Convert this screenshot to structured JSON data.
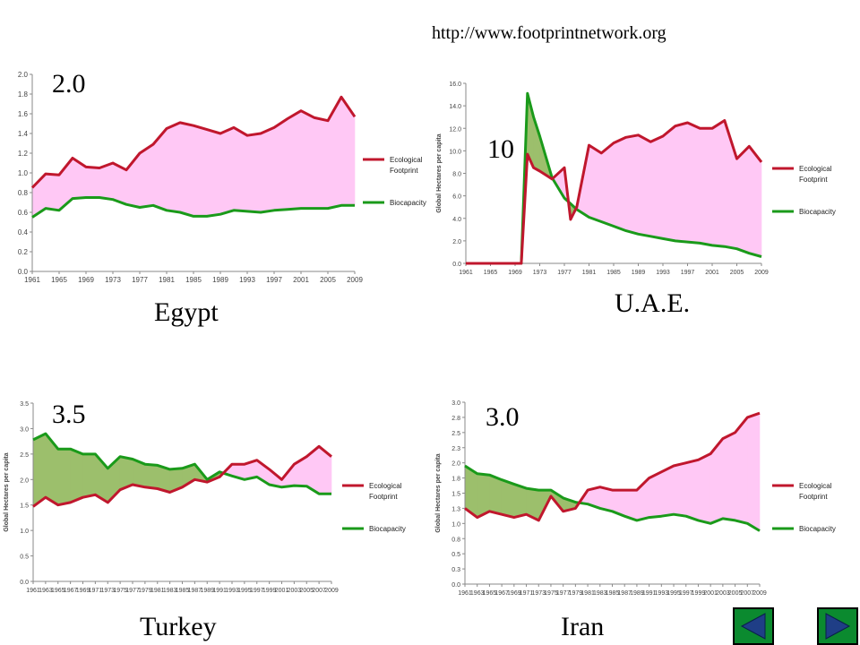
{
  "source_url": "http://www.footprintnetwork.org",
  "legend_labels": {
    "ef_line1": "Ecological",
    "ef_line2": "Footprint",
    "bio": "Biocapacity"
  },
  "colors": {
    "ef": "#c0172d",
    "bio": "#1a9a1a",
    "deficit_fill": "#ffc8f5",
    "reserve_fill": "#9cbf6c",
    "nav_button": "#0b8a2f",
    "nav_arrow": "#1f3e86"
  },
  "charts": {
    "egypt": {
      "country_label": "Egypt",
      "value_label": "2.0"
    },
    "uae": {
      "country_label": "U.A.E.",
      "value_label": "10"
    },
    "turkey": {
      "country_label": "Turkey",
      "value_label": "3.5"
    },
    "iran": {
      "country_label": "Iran",
      "value_label": "3.0"
    }
  },
  "nav": {
    "prev_icon": "left-arrow-icon",
    "next_icon": "right-arrow-icon"
  },
  "chart_data": [
    {
      "type": "area",
      "title": "",
      "xlabel": "",
      "ylabel": "",
      "x": [
        1961,
        1963,
        1965,
        1967,
        1969,
        1971,
        1973,
        1975,
        1977,
        1979,
        1981,
        1983,
        1985,
        1987,
        1989,
        1991,
        1993,
        1995,
        1997,
        1999,
        2001,
        2003,
        2005,
        2007,
        2009
      ],
      "xticks": [
        "1961",
        "1965",
        "1969",
        "1973",
        "1977",
        "1981",
        "1985",
        "1989",
        "1993",
        "1997",
        "2001",
        "2005",
        "2009"
      ],
      "yticks": [
        "0.0",
        "0.2",
        "0.4",
        "0.6",
        "0.8",
        "1.0",
        "1.2",
        "1.4",
        "1.6",
        "1.8",
        "2.0"
      ],
      "ylim": [
        0,
        2.0
      ],
      "series": [
        {
          "name": "Ecological Footprint",
          "values": [
            0.85,
            0.99,
            0.98,
            1.15,
            1.06,
            1.05,
            1.1,
            1.03,
            1.2,
            1.29,
            1.45,
            1.51,
            1.48,
            1.44,
            1.4,
            1.46,
            1.38,
            1.4,
            1.46,
            1.55,
            1.63,
            1.56,
            1.53,
            1.77,
            1.57
          ]
        },
        {
          "name": "Biocapacity",
          "values": [
            0.55,
            0.64,
            0.62,
            0.74,
            0.75,
            0.75,
            0.73,
            0.68,
            0.65,
            0.67,
            0.62,
            0.6,
            0.56,
            0.56,
            0.58,
            0.62,
            0.61,
            0.6,
            0.62,
            0.63,
            0.64,
            0.64,
            0.64,
            0.67,
            0.67
          ]
        }
      ]
    },
    {
      "type": "area",
      "title": "",
      "xlabel": "",
      "ylabel": "Global Hectares per capita",
      "x": [
        1961,
        1963,
        1965,
        1967,
        1969,
        1970,
        1971,
        1972,
        1973,
        1975,
        1977,
        1978,
        1979,
        1981,
        1983,
        1985,
        1987,
        1989,
        1991,
        1993,
        1995,
        1997,
        1999,
        2001,
        2003,
        2005,
        2007,
        2009
      ],
      "xticks": [
        "1961",
        "1965",
        "1969",
        "1973",
        "1977",
        "1981",
        "1985",
        "1989",
        "1993",
        "1997",
        "2001",
        "2005",
        "2009"
      ],
      "yticks": [
        "0.0",
        "2.0",
        "4.0",
        "6.0",
        "8.0",
        "10.0",
        "12.0",
        "14.0",
        "16.0"
      ],
      "ylim": [
        0,
        16
      ],
      "series": [
        {
          "name": "Ecological Footprint",
          "values": [
            0,
            0,
            0,
            0,
            0,
            0,
            9.7,
            8.5,
            8.2,
            7.5,
            8.5,
            3.9,
            5.0,
            10.5,
            9.8,
            10.7,
            11.2,
            11.4,
            10.8,
            11.3,
            12.2,
            12.5,
            12.0,
            12.0,
            12.7,
            9.3,
            10.4,
            9.0
          ]
        },
        {
          "name": "Biocapacity",
          "values": [
            0,
            0,
            0,
            0,
            0,
            0,
            15.1,
            13.0,
            11.3,
            7.6,
            5.8,
            5.3,
            4.8,
            4.1,
            3.7,
            3.3,
            2.9,
            2.6,
            2.4,
            2.2,
            2.0,
            1.9,
            1.8,
            1.6,
            1.5,
            1.3,
            0.9,
            0.6
          ]
        }
      ]
    },
    {
      "type": "area",
      "title": "",
      "xlabel": "",
      "ylabel": "Global Hectares per capita",
      "x": [
        1961,
        1963,
        1965,
        1967,
        1969,
        1971,
        1973,
        1975,
        1977,
        1979,
        1981,
        1983,
        1985,
        1987,
        1989,
        1991,
        1993,
        1995,
        1997,
        1999,
        2001,
        2003,
        2005,
        2007,
        2009
      ],
      "xticks": [
        "1961",
        "1963",
        "1965",
        "1967",
        "1969",
        "1971",
        "1973",
        "1975",
        "1977",
        "1979",
        "1981",
        "1983",
        "1985",
        "1987",
        "1989",
        "1991",
        "1993",
        "1995",
        "1997",
        "1999",
        "2001",
        "2003",
        "2005",
        "2007",
        "2009"
      ],
      "yticks": [
        "0.0",
        "0.5",
        "1.0",
        "1.5",
        "2.0",
        "2.5",
        "3.0",
        "3.5"
      ],
      "ylim": [
        0,
        3.5
      ],
      "series": [
        {
          "name": "Ecological Footprint",
          "values": [
            1.47,
            1.65,
            1.5,
            1.55,
            1.65,
            1.7,
            1.55,
            1.8,
            1.9,
            1.85,
            1.82,
            1.75,
            1.85,
            2.0,
            1.95,
            2.05,
            2.3,
            2.3,
            2.38,
            2.2,
            2.0,
            2.3,
            2.45,
            2.65,
            2.45
          ]
        },
        {
          "name": "Biocapacity",
          "values": [
            2.78,
            2.9,
            2.6,
            2.6,
            2.5,
            2.5,
            2.22,
            2.45,
            2.4,
            2.3,
            2.28,
            2.2,
            2.22,
            2.3,
            2.0,
            2.15,
            2.07,
            2.0,
            2.05,
            1.9,
            1.85,
            1.88,
            1.87,
            1.72,
            1.72
          ]
        }
      ]
    },
    {
      "type": "area",
      "title": "",
      "xlabel": "",
      "ylabel": "Global Hectares per capita",
      "x": [
        1961,
        1963,
        1965,
        1967,
        1969,
        1971,
        1973,
        1975,
        1977,
        1979,
        1981,
        1983,
        1985,
        1987,
        1989,
        1991,
        1993,
        1995,
        1997,
        1999,
        2001,
        2003,
        2005,
        2007,
        2009
      ],
      "xticks": [
        "1961",
        "1963",
        "1965",
        "1967",
        "1969",
        "1971",
        "1973",
        "1975",
        "1977",
        "1979",
        "1981",
        "1983",
        "1985",
        "1987",
        "1989",
        "1991",
        "1993",
        "1995",
        "1997",
        "1999",
        "2001",
        "2003",
        "2005",
        "2007",
        "2009"
      ],
      "yticks": [
        "0.0",
        "0.3",
        "0.5",
        "0.8",
        "1.0",
        "1.3",
        "1.5",
        "1.8",
        "2.0",
        "2.3",
        "2.5",
        "2.8",
        "3.0"
      ],
      "ylim": [
        0,
        3.0
      ],
      "series": [
        {
          "name": "Ecological Footprint",
          "values": [
            1.25,
            1.1,
            1.2,
            1.15,
            1.1,
            1.15,
            1.05,
            1.45,
            1.2,
            1.25,
            1.55,
            1.6,
            1.55,
            1.55,
            1.55,
            1.75,
            1.85,
            1.95,
            2.0,
            2.05,
            2.15,
            2.4,
            2.5,
            2.75,
            2.82
          ]
        },
        {
          "name": "Biocapacity",
          "values": [
            1.95,
            1.82,
            1.8,
            1.72,
            1.65,
            1.58,
            1.55,
            1.55,
            1.42,
            1.35,
            1.32,
            1.25,
            1.2,
            1.12,
            1.05,
            1.1,
            1.12,
            1.15,
            1.12,
            1.05,
            1.0,
            1.08,
            1.05,
            1.0,
            0.88
          ]
        }
      ]
    }
  ]
}
